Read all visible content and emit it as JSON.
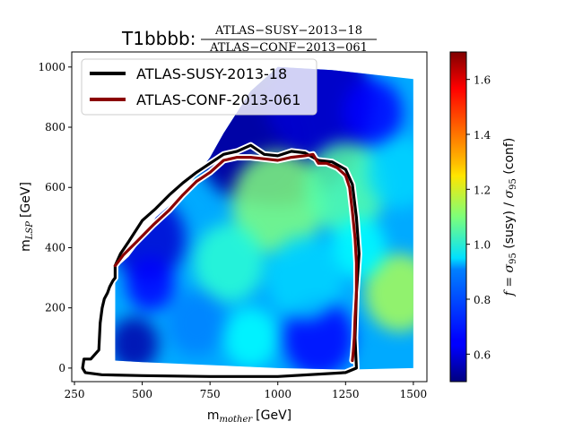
{
  "chart_data": {
    "type": "heatmap",
    "title_prefix": "T1bbbb:",
    "title_numerator": "ATLAS−SUSY−2013−18",
    "title_denominator": "ATLAS−CONF−2013−061",
    "xlabel_main": "m",
    "xlabel_sub": "mother",
    "xlabel_unit": "[GeV]",
    "ylabel_main": "m",
    "ylabel_sub": "LSP",
    "ylabel_unit": "[GeV]",
    "xlim": [
      240,
      1550
    ],
    "ylim": [
      -45,
      1050
    ],
    "x_ticks": [
      250,
      500,
      750,
      1000,
      1250,
      1500
    ],
    "y_ticks": [
      0,
      200,
      400,
      600,
      800,
      1000
    ],
    "colorbar": {
      "label": "f = σ95 (susy) / σ95 (conf)",
      "label_f": "f",
      "label_eq": " = ",
      "label_sigma1": "σ",
      "label_sub1": "95",
      "label_text1": " (susy) / ",
      "label_sigma2": "σ",
      "label_sub2": "95",
      "label_text2": " (conf)",
      "min": 0.5,
      "max": 1.7,
      "ticks": [
        "0.6",
        "0.8",
        "1.0",
        "1.2",
        "1.4",
        "1.6"
      ],
      "tick_values": [
        0.6,
        0.8,
        1.0,
        1.2,
        1.4,
        1.6
      ],
      "colormap": "jet"
    },
    "legend": {
      "placement": "top-left",
      "entries": [
        {
          "label": "ATLAS-SUSY-2013-18",
          "color": "#000000"
        },
        {
          "label": "ATLAS-CONF-2013-061",
          "color": "#8b0000"
        }
      ]
    },
    "series": [
      {
        "name": "ATLAS-SUSY-2013-18",
        "color": "#000000",
        "x": [
          400,
          400,
          420,
          450,
          500,
          550,
          600,
          650,
          700,
          750,
          800,
          850,
          900,
          950,
          1000,
          1050,
          1100,
          1150,
          1200,
          1250,
          1275,
          1290,
          1300,
          1290,
          1285,
          1290,
          1250,
          1000,
          750,
          500,
          350,
          290,
          280,
          285,
          310,
          340,
          345,
          352,
          360,
          372,
          380,
          392,
          400
        ],
        "y": [
          300,
          340,
          380,
          420,
          490,
          530,
          575,
          615,
          650,
          680,
          710,
          720,
          740,
          710,
          705,
          720,
          715,
          690,
          685,
          660,
          610,
          500,
          380,
          250,
          100,
          0,
          -15,
          -28,
          -28,
          -25,
          -22,
          -15,
          0,
          30,
          30,
          60,
          150,
          200,
          230,
          250,
          270,
          290,
          300
        ]
      },
      {
        "name": "ATLAS-CONF-2013-061",
        "color": "#8b0000",
        "x": [
          400,
          430,
          480,
          540,
          600,
          650,
          700,
          750,
          800,
          850,
          900,
          950,
          1000,
          1050,
          1100,
          1130,
          1150,
          1180,
          1220,
          1250,
          1265,
          1275,
          1285,
          1290,
          1290,
          1285,
          1282,
          1278,
          1275
        ],
        "y": [
          340,
          375,
          420,
          475,
          525,
          575,
          620,
          650,
          690,
          700,
          700,
          695,
          690,
          700,
          705,
          710,
          680,
          680,
          665,
          640,
          600,
          520,
          430,
          350,
          250,
          170,
          100,
          50,
          25
        ]
      }
    ],
    "heatmap": {
      "domain_x": [
        400,
        1500
      ],
      "region_polygon_x": [
        400,
        400,
        450,
        500,
        550,
        650,
        750,
        800,
        850,
        900,
        1000,
        1200,
        1500,
        1500,
        1250,
        1000,
        750,
        500
      ],
      "region_polygon_y": [
        25,
        330,
        370,
        430,
        500,
        580,
        700,
        780,
        850,
        920,
        1000,
        990,
        960,
        0,
        -5,
        0,
        10,
        20
      ],
      "base_value": 0.85,
      "features": [
        {
          "x": 1000,
          "y": 880,
          "r": 340,
          "v": 0.5
        },
        {
          "x": 900,
          "y": 750,
          "r": 200,
          "v": 0.55
        },
        {
          "x": 1150,
          "y": 900,
          "r": 200,
          "v": 0.6
        },
        {
          "x": 520,
          "y": 430,
          "r": 140,
          "v": 0.6
        },
        {
          "x": 470,
          "y": 80,
          "r": 90,
          "v": 0.55
        },
        {
          "x": 530,
          "y": 280,
          "r": 90,
          "v": 0.65
        },
        {
          "x": 1000,
          "y": 550,
          "r": 170,
          "v": 1.1
        },
        {
          "x": 1250,
          "y": 600,
          "r": 150,
          "v": 1.05
        },
        {
          "x": 1450,
          "y": 250,
          "r": 130,
          "v": 1.15
        },
        {
          "x": 820,
          "y": 350,
          "r": 130,
          "v": 1.0
        },
        {
          "x": 1150,
          "y": 100,
          "r": 130,
          "v": 0.65
        },
        {
          "x": 1350,
          "y": 850,
          "r": 110,
          "v": 0.65
        },
        {
          "x": 1300,
          "y": 400,
          "r": 100,
          "v": 0.95
        },
        {
          "x": 700,
          "y": 150,
          "r": 110,
          "v": 0.8
        },
        {
          "x": 1100,
          "y": 300,
          "r": 140,
          "v": 0.9
        },
        {
          "x": 900,
          "y": 100,
          "r": 100,
          "v": 0.95
        },
        {
          "x": 1450,
          "y": 650,
          "r": 120,
          "v": 0.9
        }
      ]
    }
  }
}
